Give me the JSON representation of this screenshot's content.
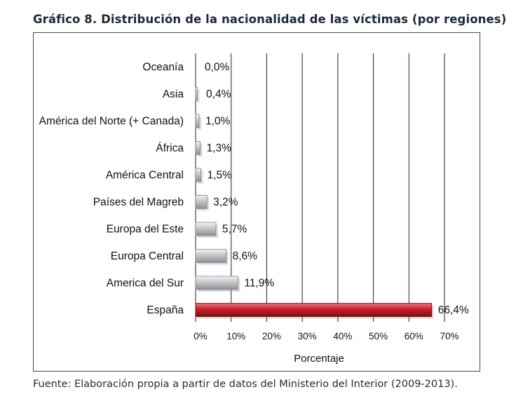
{
  "figure": {
    "title": "Gráfico 8. Distribución de la nacionalidad de las víctimas (por regiones)",
    "source": "Fuente: Elaboración propia a partir de datos del Ministerio del Interior (2009-2013)."
  },
  "colors": {
    "bar_default": "#b9bcbf",
    "bar_highlight": "#c8202a",
    "gridline": "#222222",
    "text": "#111111"
  },
  "chart_data": {
    "type": "bar",
    "orientation": "horizontal",
    "title": "Gráfico 8. Distribución de la nacionalidad de las víctimas (por regiones)",
    "categories": [
      "Oceanía",
      "Asia",
      "América del Norte (+ Canada)",
      "África",
      "América Central",
      "Países del Magreb",
      "Europa del Este",
      "Europa Central",
      "America del Sur",
      "España"
    ],
    "values": [
      0.0,
      0.4,
      1.0,
      1.3,
      1.5,
      3.2,
      5.7,
      8.6,
      11.9,
      66.4
    ],
    "value_labels": [
      "0,0%",
      "0,4%",
      "1,0%",
      "1,3%",
      "1,5%",
      "3,2%",
      "5,7%",
      "8,6%",
      "11,9%",
      "66,4%"
    ],
    "highlight_index": 9,
    "xlabel": "Porcentaje",
    "ylabel": "",
    "xlim": [
      0,
      70
    ],
    "xticks": [
      0,
      10,
      20,
      30,
      40,
      50,
      60,
      70
    ],
    "xtick_labels": [
      "0%",
      "10%",
      "20%",
      "30%",
      "40%",
      "50%",
      "60%",
      "70%"
    ],
    "grid": true,
    "legend": "none"
  }
}
